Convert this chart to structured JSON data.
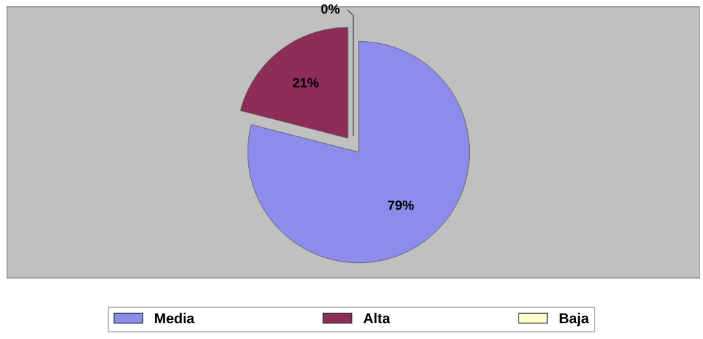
{
  "chart_data": {
    "type": "pie",
    "categories": [
      "Media",
      "Alta",
      "Baja"
    ],
    "values": [
      79,
      21,
      0
    ],
    "colors": [
      "#8c8cec",
      "#8e2d5a",
      "#ffffcc"
    ],
    "value_labels": [
      "79%",
      "21%",
      "0%"
    ],
    "legend": "bottom"
  }
}
